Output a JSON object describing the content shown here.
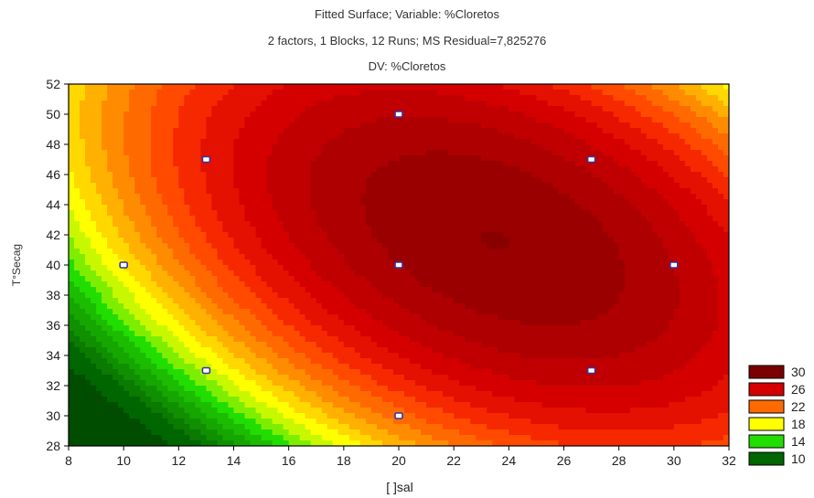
{
  "chart_data": {
    "type": "heatmap",
    "title": "Fitted Surface; Variable: %Cloretos",
    "subtitle": "2 factors, 1 Blocks, 12 Runs; MS Residual=7,825276",
    "subtitle2": "DV: %Cloretos",
    "xlabel": "[ ]sal",
    "ylabel": "T°Secag",
    "xlim": [
      8,
      32
    ],
    "ylim": [
      28,
      52
    ],
    "xticks": [
      "8",
      "10",
      "12",
      "14",
      "16",
      "18",
      "20",
      "22",
      "24",
      "26",
      "28",
      "30",
      "32"
    ],
    "yticks": [
      "28",
      "30",
      "32",
      "34",
      "36",
      "38",
      "40",
      "42",
      "44",
      "46",
      "48",
      "50",
      "52"
    ],
    "design_points": [
      {
        "x": 13,
        "y": 47
      },
      {
        "x": 20,
        "y": 50
      },
      {
        "x": 27,
        "y": 47
      },
      {
        "x": 10,
        "y": 40
      },
      {
        "x": 20,
        "y": 40
      },
      {
        "x": 30,
        "y": 40
      },
      {
        "x": 13,
        "y": 33
      },
      {
        "x": 27,
        "y": 33
      },
      {
        "x": 20,
        "y": 30
      }
    ],
    "legend": {
      "placement": "bottom-right",
      "entries": [
        {
          "label": "30",
          "color": "#7a0000"
        },
        {
          "label": "26",
          "color": "#d40000"
        },
        {
          "label": "22",
          "color": "#ff6a00"
        },
        {
          "label": "18",
          "color": "#ffff00"
        },
        {
          "label": "14",
          "color": "#22dd00"
        },
        {
          "label": "10",
          "color": "#006600"
        }
      ]
    }
  }
}
